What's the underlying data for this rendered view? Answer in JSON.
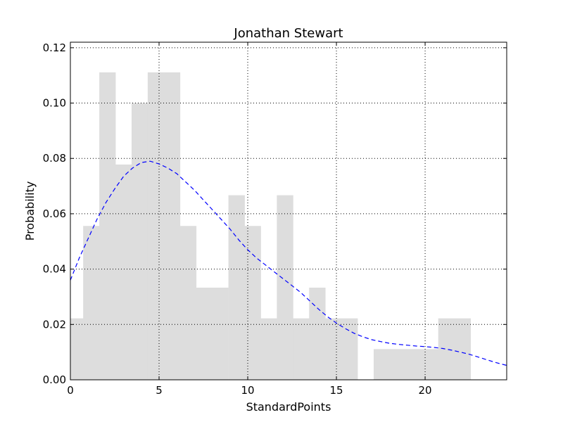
{
  "chart_data": {
    "type": "bar",
    "title": "Jonathan Stewart",
    "xlabel": "StandardPoints",
    "ylabel": "Probability",
    "xlim": [
      0,
      24.6
    ],
    "ylim": [
      0,
      0.122
    ],
    "grid": true,
    "xticks": [
      0,
      5,
      10,
      15,
      20
    ],
    "xtick_labels": [
      "0",
      "5",
      "10",
      "15",
      "20"
    ],
    "yticks": [
      0.0,
      0.02,
      0.04,
      0.06,
      0.08,
      0.1,
      0.12
    ],
    "ytick_labels": [
      "0.00",
      "0.02",
      "0.04",
      "0.06",
      "0.08",
      "0.10",
      "0.12"
    ],
    "histogram": {
      "name": "histogram",
      "bin_edges": [
        0,
        0.72,
        1.63,
        2.54,
        3.45,
        4.36,
        5.27,
        6.18,
        7.09,
        8.0,
        8.91,
        9.82,
        10.73,
        11.64,
        12.55,
        13.46,
        14.37,
        15.28,
        16.19,
        17.1,
        18.01,
        18.92,
        19.83,
        20.74,
        21.65,
        22.56
      ],
      "values": [
        0.0222,
        0.0556,
        0.1111,
        0.0778,
        0.1,
        0.1111,
        0.1111,
        0.0556,
        0.0333,
        0.0333,
        0.0667,
        0.0556,
        0.0222,
        0.0667,
        0.0222,
        0.0333,
        0.0222,
        0.0222,
        0.0,
        0.0111,
        0.0111,
        0.0111,
        0.0111,
        0.0222,
        0.0222
      ],
      "color": "#dddddd"
    },
    "density_curve": {
      "name": "density",
      "style": "dashed",
      "color": "#0000ff",
      "x": [
        0,
        0.5,
        1,
        1.5,
        2,
        2.5,
        3,
        3.5,
        4,
        4.5,
        5,
        5.5,
        6,
        6.5,
        7,
        7.5,
        8,
        8.5,
        9,
        9.5,
        10,
        10.5,
        11,
        11.5,
        12,
        12.5,
        13,
        13.5,
        14,
        14.5,
        15,
        15.5,
        16,
        16.5,
        17,
        17.5,
        18,
        18.5,
        19,
        19.5,
        20,
        20.5,
        21,
        21.5,
        22,
        22.5,
        23,
        23.5,
        24,
        24.6
      ],
      "y": [
        0.036,
        0.044,
        0.051,
        0.058,
        0.064,
        0.069,
        0.0735,
        0.0765,
        0.0785,
        0.079,
        0.078,
        0.0765,
        0.0745,
        0.0715,
        0.0685,
        0.065,
        0.0615,
        0.058,
        0.0545,
        0.0505,
        0.047,
        0.044,
        0.0415,
        0.039,
        0.0365,
        0.034,
        0.0315,
        0.0285,
        0.0255,
        0.0228,
        0.0205,
        0.0185,
        0.0168,
        0.0155,
        0.0145,
        0.0138,
        0.0132,
        0.0128,
        0.0125,
        0.0122,
        0.012,
        0.0117,
        0.0113,
        0.0107,
        0.01,
        0.0092,
        0.0082,
        0.0072,
        0.0062,
        0.0052
      ]
    }
  }
}
